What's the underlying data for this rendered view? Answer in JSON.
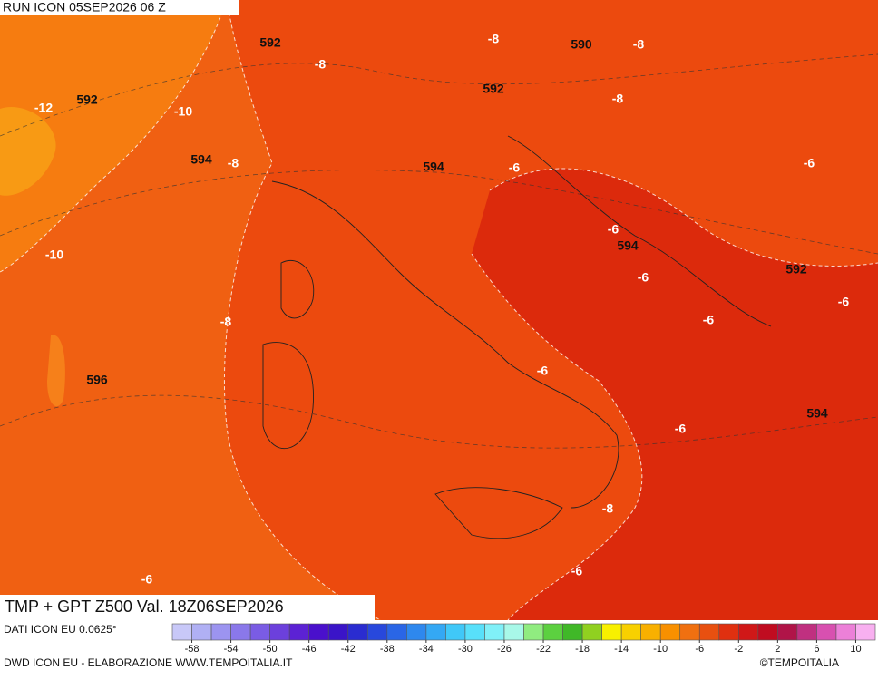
{
  "header": {
    "run": "RUN ICON 05SEP2026 06 Z"
  },
  "title": "TMP + GPT Z500 Val. 18Z06SEP2026",
  "source": "DATI ICON EU 0.0625°",
  "credit": "DWD ICON EU - ELABORAZIONE WWW.TEMPOITALIA.IT",
  "copyright": "©TEMPOITALIA",
  "map": {
    "geopotential_labels": [
      592,
      590,
      592,
      592,
      594,
      594,
      594,
      592,
      596,
      594
    ],
    "temperature_labels": [
      -8,
      -8,
      -8,
      -12,
      -10,
      -8,
      -8,
      -6,
      -6,
      -6,
      -10,
      -8,
      -6,
      -6,
      -6,
      -6,
      -6,
      -8,
      -6,
      -6
    ]
  },
  "colorbar": {
    "range": [
      -60,
      12
    ],
    "ticks": [
      -58,
      -54,
      -50,
      -46,
      -42,
      -38,
      -34,
      -30,
      -26,
      -22,
      -18,
      -14,
      -10,
      -6,
      -2,
      2,
      6,
      10
    ],
    "colors": [
      "#c8c8f8",
      "#b0b0f4",
      "#9c94f0",
      "#8a78ea",
      "#7a5ce4",
      "#6c40dc",
      "#5c22d4",
      "#4a10cc",
      "#3a14c8",
      "#2a2cd0",
      "#2848dc",
      "#2a66e6",
      "#2e88ee",
      "#34a8f4",
      "#40c8f8",
      "#58e0fa",
      "#80f0f8",
      "#a8f8e8",
      "#90ec80",
      "#5cd040",
      "#40b828",
      "#90d020",
      "#f8f000",
      "#f8d000",
      "#f8b000",
      "#f89000",
      "#f07010",
      "#e85010",
      "#e03010",
      "#d01818",
      "#c00c20",
      "#b01448",
      "#c03080",
      "#d850b0",
      "#ec80d8",
      "#f8b0f0"
    ]
  }
}
